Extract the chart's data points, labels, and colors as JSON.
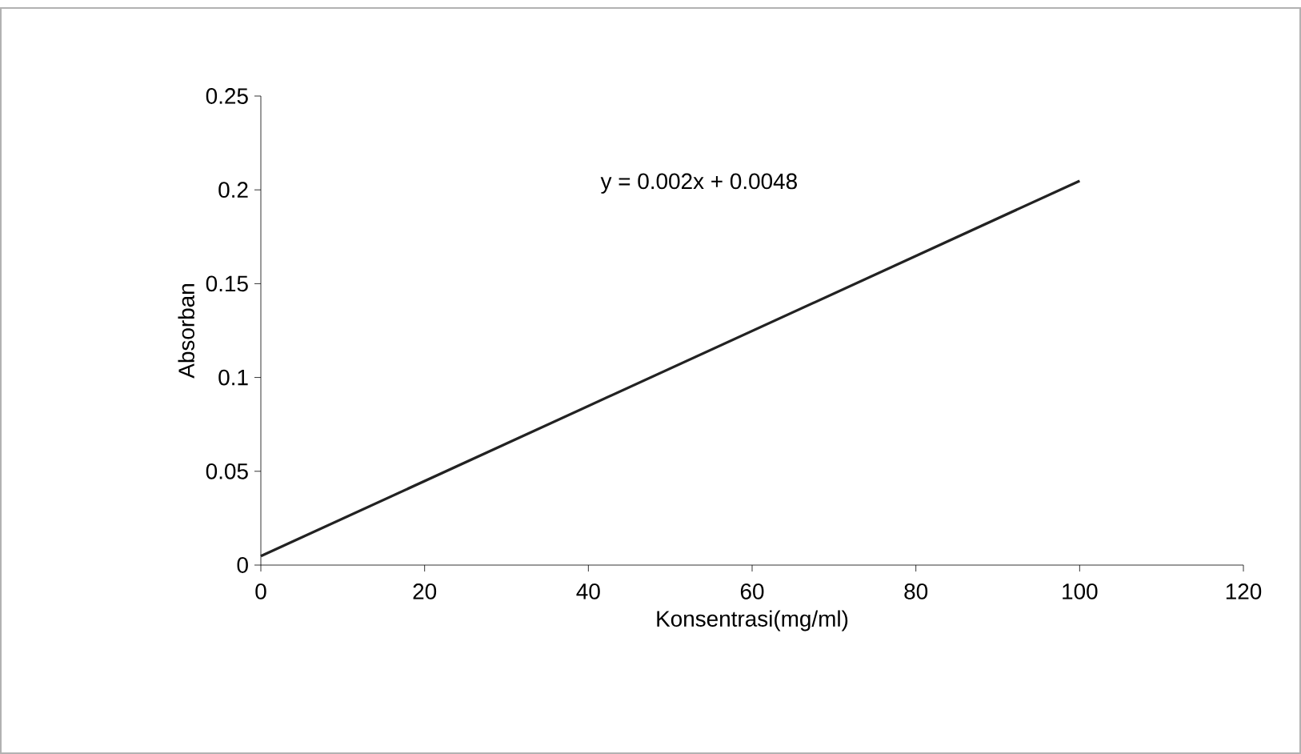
{
  "chart_data": {
    "type": "line",
    "xlabel": "Konsentrasi(mg/ml)",
    "ylabel": "Absorban",
    "annotations": [
      "y = 0.002x + 0.0048"
    ],
    "series": [
      {
        "color": "#222222",
        "x": [
          0,
          100
        ],
        "values": [
          0.0048,
          0.2048
        ]
      }
    ],
    "xlim": [
      0,
      120
    ],
    "ylim": [
      0,
      0.25
    ],
    "xticks": [
      0,
      20,
      40,
      60,
      80,
      100,
      120
    ],
    "yticks": [
      0,
      0.05,
      0.1,
      0.15,
      0.2,
      0.25
    ],
    "marker": "none",
    "line_style": "solid"
  }
}
